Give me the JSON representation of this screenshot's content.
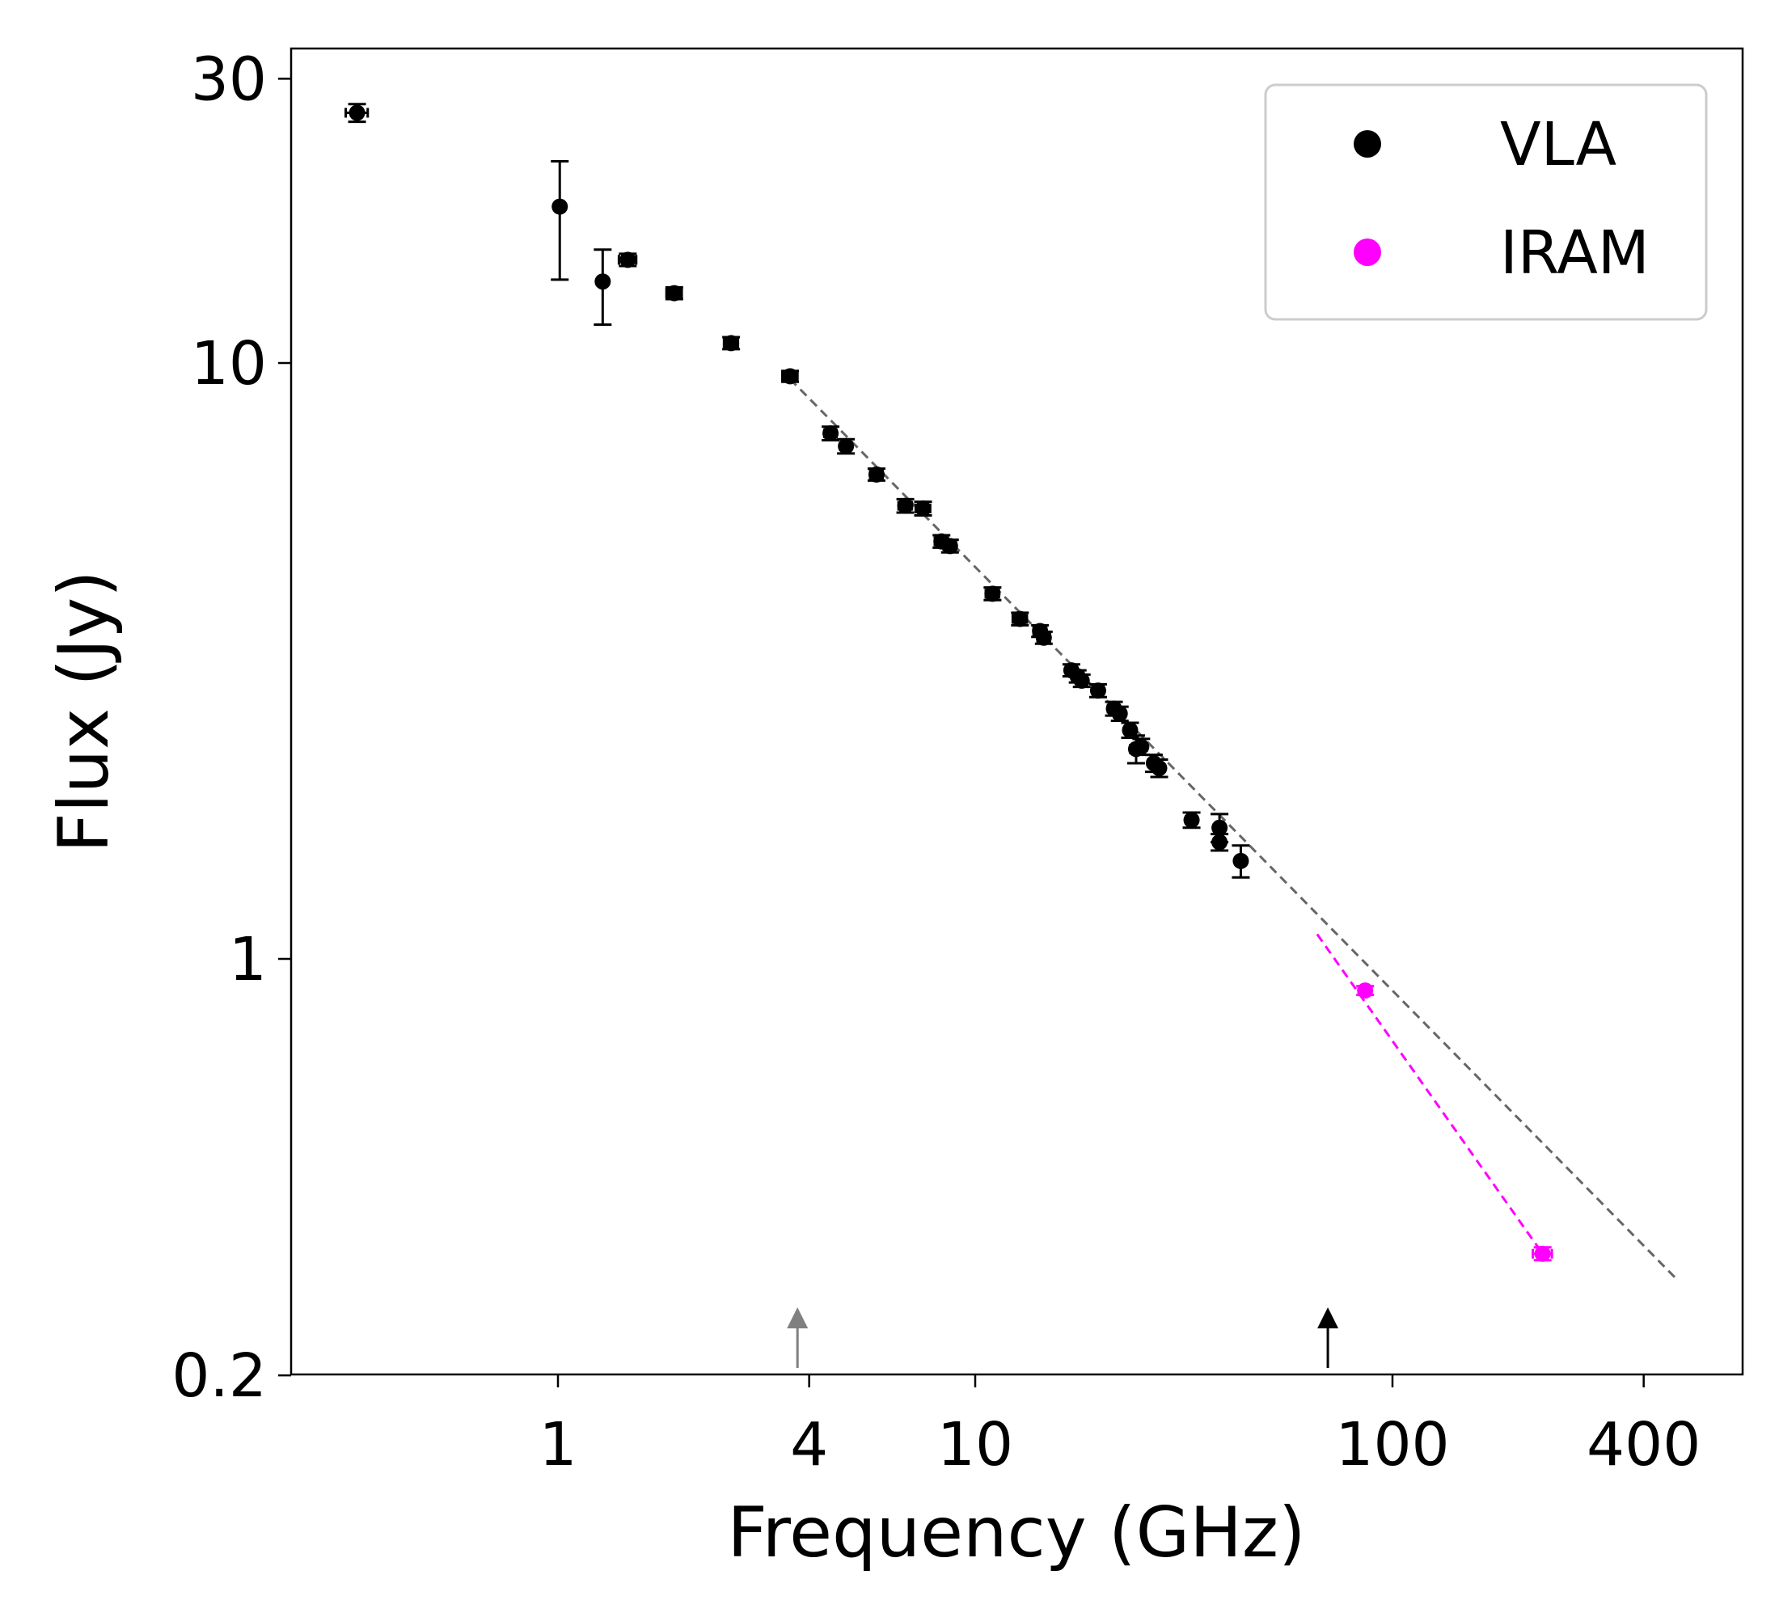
{
  "chart_data": {
    "type": "scatter",
    "title": "",
    "xlabel": "Frequency (GHz)",
    "ylabel": "Flux (Jy)",
    "xscale": "log",
    "yscale": "log",
    "xlim": [
      0.22,
      600
    ],
    "ylim": [
      0.2,
      34
    ],
    "xticks": [
      {
        "value": 1,
        "label": "1"
      },
      {
        "value": 4,
        "label": "4"
      },
      {
        "value": 10,
        "label": "10"
      },
      {
        "value": 100,
        "label": "100"
      },
      {
        "value": 400,
        "label": "400"
      }
    ],
    "yticks": [
      {
        "value": 0.2,
        "label": "0.2"
      },
      {
        "value": 1,
        "label": "1"
      },
      {
        "value": 10,
        "label": "10"
      },
      {
        "value": 30,
        "label": "30"
      }
    ],
    "legend": {
      "position": "top-right",
      "entries": [
        {
          "label": "VLA",
          "color": "#000000"
        },
        {
          "label": "IRAM",
          "color": "#ff00ff"
        }
      ]
    },
    "series": [
      {
        "name": "VLA",
        "color": "#000000",
        "points": [
          {
            "x": 0.33,
            "y": 26.3,
            "yerr": [
              0.9,
              0.9
            ],
            "xerr": [
              0.02,
              0.02
            ]
          },
          {
            "x": 1.01,
            "y": 18.3,
            "yerr": [
              4.5,
              3.5
            ],
            "xerr": [
              0,
              0
            ]
          },
          {
            "x": 1.28,
            "y": 13.7,
            "yerr": [
              2.1,
              1.8
            ],
            "xerr": [
              0,
              0
            ]
          },
          {
            "x": 1.47,
            "y": 14.9,
            "yerr": [
              0.35,
              0.35
            ],
            "xerr": [
              0.07,
              0.07
            ]
          },
          {
            "x": 1.9,
            "y": 13.1,
            "yerr": [
              0.3,
              0.3
            ],
            "xerr": [
              0.08,
              0.08
            ]
          },
          {
            "x": 2.6,
            "y": 10.8,
            "yerr": [
              0.25,
              0.25
            ],
            "xerr": [
              0.1,
              0.1
            ]
          },
          {
            "x": 3.6,
            "y": 9.5,
            "yerr": [
              0.2,
              0.2
            ],
            "xerr": [
              0.15,
              0.15
            ]
          },
          {
            "x": 4.5,
            "y": 7.62,
            "yerr": [
              0.2,
              0.2
            ],
            "xerr": [
              0.15,
              0.15
            ]
          },
          {
            "x": 4.9,
            "y": 7.25,
            "yerr": [
              0.2,
              0.2
            ],
            "xerr": [
              0.15,
              0.15
            ]
          },
          {
            "x": 5.8,
            "y": 6.5,
            "yerr": [
              0.15,
              0.15
            ],
            "xerr": [
              0.2,
              0.2
            ]
          },
          {
            "x": 6.8,
            "y": 5.76,
            "yerr": [
              0.15,
              0.15
            ],
            "xerr": [
              0.25,
              0.25
            ]
          },
          {
            "x": 7.5,
            "y": 5.7,
            "yerr": [
              0.15,
              0.15
            ],
            "xerr": [
              0.3,
              0.3
            ]
          },
          {
            "x": 8.3,
            "y": 5.02,
            "yerr": [
              0.12,
              0.12
            ],
            "xerr": [
              0.3,
              0.3
            ]
          },
          {
            "x": 8.7,
            "y": 4.93,
            "yerr": [
              0.12,
              0.12
            ],
            "xerr": [
              0.3,
              0.3
            ]
          },
          {
            "x": 11.0,
            "y": 4.1,
            "yerr": [
              0.1,
              0.1
            ],
            "xerr": [
              0.4,
              0.4
            ]
          },
          {
            "x": 12.8,
            "y": 3.72,
            "yerr": [
              0.09,
              0.09
            ],
            "xerr": [
              0.5,
              0.5
            ]
          },
          {
            "x": 14.3,
            "y": 3.55,
            "yerr": [
              0.08,
              0.08
            ],
            "xerr": [
              0.5,
              0.5
            ]
          },
          {
            "x": 14.6,
            "y": 3.46,
            "yerr": [
              0.08,
              0.08
            ],
            "xerr": [
              0.5,
              0.5
            ]
          },
          {
            "x": 17.0,
            "y": 3.05,
            "yerr": [
              0.07,
              0.07
            ],
            "xerr": [
              0.5,
              0.5
            ]
          },
          {
            "x": 17.6,
            "y": 2.98,
            "yerr": [
              0.07,
              0.07
            ],
            "xerr": [
              0.5,
              0.5
            ]
          },
          {
            "x": 18.0,
            "y": 2.93,
            "yerr": [
              0.07,
              0.07
            ],
            "xerr": [
              0.5,
              0.5
            ]
          },
          {
            "x": 19.7,
            "y": 2.82,
            "yerr": [
              0.07,
              0.07
            ],
            "xerr": [
              0.6,
              0.6
            ]
          },
          {
            "x": 21.5,
            "y": 2.63,
            "yerr": [
              0.07,
              0.07
            ],
            "xerr": [
              0.7,
              0.7
            ]
          },
          {
            "x": 22.2,
            "y": 2.58,
            "yerr": [
              0.07,
              0.07
            ],
            "xerr": [
              0.7,
              0.7
            ]
          },
          {
            "x": 23.5,
            "y": 2.42,
            "yerr": [
              0.07,
              0.07
            ],
            "xerr": [
              0.7,
              0.7
            ]
          },
          {
            "x": 24.3,
            "y": 2.25,
            "yerr": [
              0.12,
              0.12
            ],
            "xerr": [
              0.8,
              0.8
            ]
          },
          {
            "x": 25.0,
            "y": 2.27,
            "yerr": [
              0.07,
              0.07
            ],
            "xerr": [
              0.8,
              0.8
            ]
          },
          {
            "x": 26.8,
            "y": 2.13,
            "yerr": [
              0.07,
              0.07
            ],
            "xerr": [
              0.8,
              0.8
            ]
          },
          {
            "x": 27.6,
            "y": 2.09,
            "yerr": [
              0.07,
              0.07
            ],
            "xerr": [
              0.8,
              0.8
            ]
          },
          {
            "x": 33.0,
            "y": 1.71,
            "yerr": [
              0.05,
              0.05
            ],
            "xerr": [
              1.0,
              1.0
            ]
          },
          {
            "x": 38.5,
            "y": 1.66,
            "yerr": [
              0.09,
              0.09
            ],
            "xerr": [
              1.0,
              1.0
            ]
          },
          {
            "x": 38.5,
            "y": 1.57,
            "yerr": [
              0.05,
              0.05
            ],
            "xerr": [
              1.0,
              1.0
            ]
          },
          {
            "x": 43.3,
            "y": 1.46,
            "yerr": [
              0.09,
              0.09
            ],
            "xerr": [
              1.2,
              1.2
            ]
          }
        ]
      },
      {
        "name": "IRAM",
        "color": "#ff00ff",
        "points": [
          {
            "x": 86.0,
            "y": 0.885,
            "yerr": [
              0.015,
              0.015
            ],
            "xerr": [
              3,
              3
            ]
          },
          {
            "x": 229.0,
            "y": 0.32,
            "yerr": [
              0.008,
              0.008
            ],
            "xerr": [
              12,
              12
            ]
          }
        ]
      }
    ],
    "fits": [
      {
        "name": "power-law fit",
        "color": "#666666",
        "dash": "dashed",
        "x": [
          3.6,
          480
        ],
        "y": [
          9.4,
          0.29
        ]
      },
      {
        "name": "IRAM fit",
        "color": "#ff00ff",
        "dash": "dashed",
        "x": [
          66,
          229
        ],
        "y": [
          1.1,
          0.32
        ]
      }
    ],
    "annotations": [
      {
        "type": "arrow",
        "x": 3.75,
        "color": "#808080"
      },
      {
        "type": "arrow",
        "x": 70,
        "color": "#000000"
      }
    ]
  }
}
